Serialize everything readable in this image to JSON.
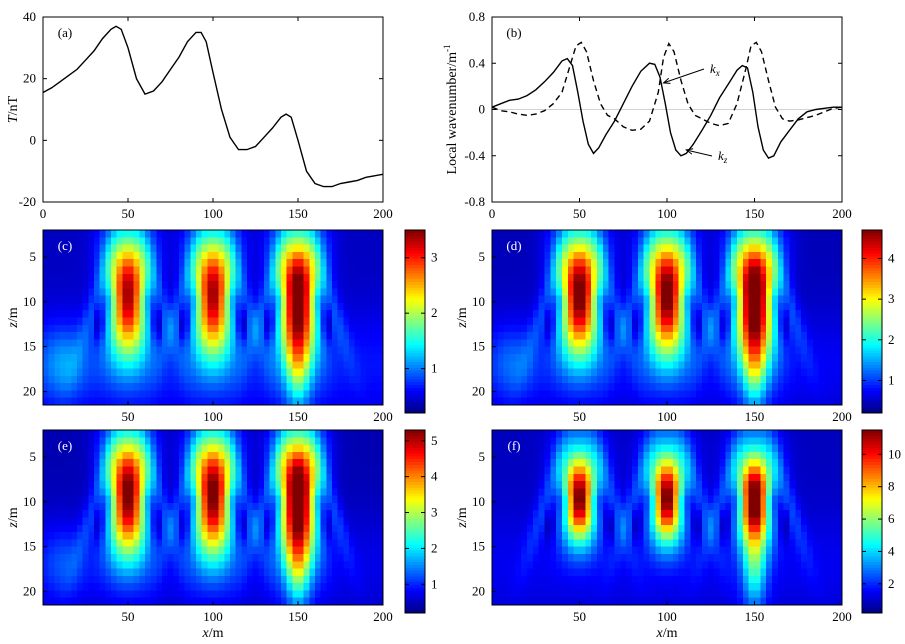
{
  "figure": "six-panel magnetic profile and local wavenumber imaging figure",
  "chart_data": [
    {
      "id": "a",
      "panel_label": "(a)",
      "type": "line",
      "title": "",
      "xlabel": "",
      "ylabel": "T/nT",
      "xlim": [
        0,
        200
      ],
      "ylim": [
        -20,
        40
      ],
      "xticks": [
        0,
        50,
        100,
        150,
        200
      ],
      "yticks": [
        -20,
        0,
        20,
        40
      ],
      "series": [
        {
          "name": "T",
          "style": "solid",
          "x": [
            0,
            5,
            10,
            15,
            20,
            25,
            30,
            35,
            40,
            43,
            46,
            50,
            55,
            60,
            65,
            70,
            75,
            80,
            85,
            90,
            93,
            96,
            100,
            105,
            110,
            115,
            120,
            125,
            130,
            135,
            140,
            143,
            146,
            150,
            155,
            160,
            165,
            170,
            175,
            180,
            185,
            190,
            195,
            200
          ],
          "y": [
            15.5,
            17,
            19,
            21,
            23,
            26,
            29,
            33,
            36,
            37,
            36,
            30,
            20,
            15,
            16,
            19,
            23,
            27,
            32,
            35,
            35,
            32,
            22,
            10,
            1,
            -3,
            -3,
            -2,
            1,
            4,
            7.5,
            8.5,
            7.5,
            0,
            -10,
            -14,
            -15,
            -15,
            -14,
            -13.5,
            -13,
            -12,
            -11.5,
            -11
          ]
        }
      ]
    },
    {
      "id": "b",
      "panel_label": "(b)",
      "type": "line",
      "title": "",
      "xlabel": "",
      "ylabel": "Local wavenumber/m",
      "ylabel_sup": "-1",
      "xlim": [
        0,
        200
      ],
      "ylim": [
        -0.8,
        0.8
      ],
      "xticks": [
        0,
        50,
        100,
        150,
        200
      ],
      "yticks": [
        -0.8,
        -0.4,
        0,
        0.4,
        0.8
      ],
      "series": [
        {
          "name": "kx",
          "style": "dashed",
          "x": [
            0,
            5,
            10,
            15,
            20,
            25,
            30,
            35,
            40,
            45,
            48,
            51,
            54,
            58,
            62,
            66,
            70,
            75,
            80,
            85,
            90,
            95,
            98,
            101,
            104,
            108,
            112,
            116,
            120,
            125,
            130,
            135,
            140,
            145,
            148,
            151,
            154,
            158,
            162,
            166,
            170,
            175,
            180,
            185,
            190,
            195,
            200
          ],
          "y": [
            0.02,
            -0.01,
            -0.02,
            -0.04,
            -0.05,
            -0.04,
            -0.01,
            0.05,
            0.15,
            0.4,
            0.55,
            0.58,
            0.5,
            0.25,
            0.05,
            -0.05,
            -0.08,
            -0.15,
            -0.18,
            -0.17,
            -0.1,
            0.15,
            0.45,
            0.57,
            0.5,
            0.25,
            0.05,
            -0.05,
            -0.08,
            -0.12,
            -0.14,
            -0.12,
            0.05,
            0.35,
            0.55,
            0.58,
            0.5,
            0.25,
            0.02,
            -0.08,
            -0.1,
            -0.09,
            -0.07,
            -0.05,
            -0.02,
            0.01,
            0.02
          ]
        },
        {
          "name": "kz",
          "style": "solid",
          "x": [
            0,
            5,
            10,
            15,
            20,
            25,
            30,
            35,
            40,
            43,
            46,
            49,
            52,
            55,
            58,
            61,
            65,
            70,
            75,
            80,
            85,
            90,
            93,
            96,
            99,
            102,
            105,
            108,
            111,
            115,
            120,
            125,
            130,
            135,
            140,
            143,
            146,
            149,
            152,
            155,
            158,
            161,
            165,
            170,
            175,
            180,
            185,
            190,
            195,
            200
          ],
          "y": [
            0.02,
            0.05,
            0.08,
            0.09,
            0.12,
            0.17,
            0.24,
            0.32,
            0.42,
            0.44,
            0.38,
            0.15,
            -0.1,
            -0.3,
            -0.38,
            -0.33,
            -0.22,
            -0.1,
            0.05,
            0.2,
            0.33,
            0.4,
            0.39,
            0.28,
            0.05,
            -0.2,
            -0.35,
            -0.4,
            -0.38,
            -0.3,
            -0.18,
            -0.05,
            0.1,
            0.22,
            0.34,
            0.38,
            0.36,
            0.15,
            -0.15,
            -0.35,
            -0.42,
            -0.4,
            -0.28,
            -0.18,
            -0.08,
            -0.02,
            0.0,
            0.01,
            0.02,
            0.02
          ]
        }
      ],
      "annotations": [
        {
          "text": "k",
          "sub": "x",
          "target_series": "kx"
        },
        {
          "text": "k",
          "sub": "z",
          "target_series": "kz"
        }
      ]
    },
    {
      "id": "c",
      "panel_label": "(c)",
      "type": "heatmap",
      "xlabel": "",
      "ylabel": "z/m",
      "xlim": [
        0,
        200
      ],
      "zlim": [
        2,
        21.5
      ],
      "xticks": [
        50,
        100,
        150,
        200
      ],
      "yticks": [
        5,
        10,
        15,
        20
      ],
      "colorbar_ticks": [
        1,
        2,
        3
      ],
      "colorbar_range": [
        0.2,
        3.5
      ],
      "anomaly_centers_x": [
        50,
        100,
        150
      ],
      "anomaly_peak_depth": 10,
      "peak_values": [
        3.1,
        3.1,
        3.4
      ],
      "background": 0.55
    },
    {
      "id": "d",
      "panel_label": "(d)",
      "type": "heatmap",
      "xlabel": "",
      "ylabel": "z/m",
      "xlim": [
        0,
        200
      ],
      "zlim": [
        2,
        21.5
      ],
      "xticks": [
        50,
        100,
        150,
        200
      ],
      "yticks": [
        5,
        10,
        15,
        20
      ],
      "colorbar_ticks": [
        1,
        2,
        3,
        4
      ],
      "colorbar_range": [
        0.2,
        4.7
      ],
      "anomaly_centers_x": [
        50,
        100,
        150
      ],
      "anomaly_peak_depth": 10,
      "peak_values": [
        4.4,
        4.4,
        4.7
      ],
      "background": 0.6
    },
    {
      "id": "e",
      "panel_label": "(e)",
      "type": "heatmap",
      "xlabel": "x/m",
      "ylabel": "z/m",
      "xlim": [
        0,
        200
      ],
      "zlim": [
        2,
        21.5
      ],
      "xticks": [
        50,
        100,
        150,
        200
      ],
      "yticks": [
        5,
        10,
        15,
        20
      ],
      "colorbar_ticks": [
        1,
        2,
        3,
        4,
        5
      ],
      "colorbar_range": [
        0.2,
        5.3
      ],
      "anomaly_centers_x": [
        50,
        100,
        150
      ],
      "anomaly_peak_depth": 10,
      "peak_values": [
        4.9,
        4.9,
        5.3
      ],
      "background": 0.6
    },
    {
      "id": "f",
      "panel_label": "(f)",
      "type": "heatmap",
      "xlabel": "x/m",
      "ylabel": "z/m",
      "xlim": [
        0,
        200
      ],
      "zlim": [
        2,
        21.5
      ],
      "xticks": [
        50,
        100,
        150,
        200
      ],
      "yticks": [
        5,
        10,
        15,
        20
      ],
      "colorbar_ticks": [
        2,
        4,
        6,
        8,
        10
      ],
      "colorbar_range": [
        0.2,
        11.5
      ],
      "anomaly_centers_x": [
        50,
        100,
        150
      ],
      "anomaly_peak_depth": 10,
      "peak_values": [
        10.8,
        10.8,
        11.3
      ],
      "background": 1.2
    }
  ]
}
